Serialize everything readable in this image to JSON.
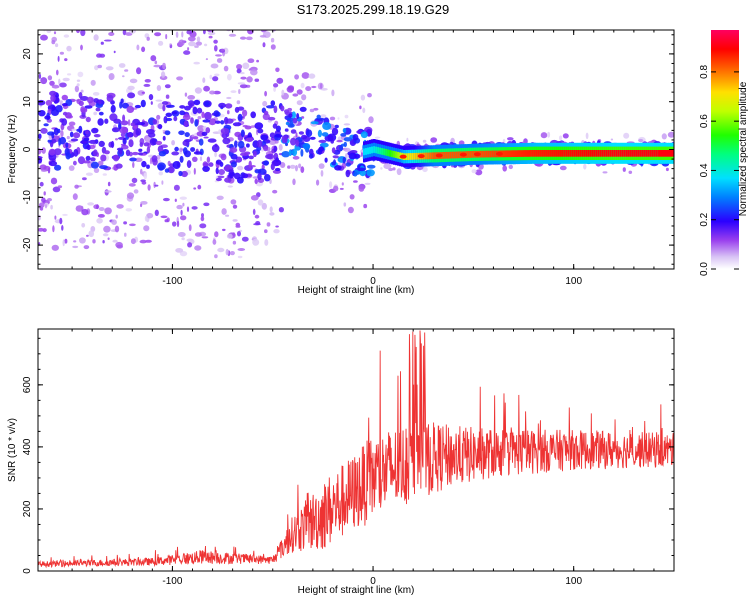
{
  "title": "S173.2025.299.18.19.G29",
  "chart_data": [
    {
      "type": "heatmap",
      "xlabel": "Height of straight line (km)",
      "ylabel": "Frequency (Hz)",
      "xlim": [
        -167,
        150
      ],
      "ylim": [
        -25,
        25
      ],
      "xticks": [
        -100,
        0,
        100
      ],
      "yticks": [
        -20,
        -10,
        0,
        10,
        20
      ],
      "zlabel": "Normalized spectral amplitude",
      "zlim": [
        0,
        0.97
      ],
      "zticks": [
        0.0,
        0.2,
        0.4,
        0.6,
        0.8
      ],
      "ridge": [
        {
          "x": -110,
          "y": 4,
          "amp": 0.3
        },
        {
          "x": -90,
          "y": 2,
          "amp": 0.25
        },
        {
          "x": -60,
          "y": 1,
          "amp": 0.3
        },
        {
          "x": -40,
          "y": 4,
          "amp": 0.3
        },
        {
          "x": -25,
          "y": 3,
          "amp": 0.35
        },
        {
          "x": -10,
          "y": -1,
          "amp": 0.35
        },
        {
          "x": 0,
          "y": 0,
          "amp": 0.4
        },
        {
          "x": 15,
          "y": -1.5,
          "amp": 0.7
        },
        {
          "x": 30,
          "y": -1.3,
          "amp": 0.85
        },
        {
          "x": 50,
          "y": -1,
          "amp": 0.85
        },
        {
          "x": 80,
          "y": -0.8,
          "amp": 0.9
        },
        {
          "x": 120,
          "y": -0.8,
          "amp": 0.93
        },
        {
          "x": 150,
          "y": -0.8,
          "amp": 0.93
        }
      ]
    },
    {
      "type": "line",
      "xlabel": "Height of straight line (km)",
      "ylabel": "SNR (10 * v/v)",
      "xlim": [
        -167,
        150
      ],
      "ylim": [
        0,
        780
      ],
      "xticks": [
        -100,
        0,
        100
      ],
      "yticks": [
        0,
        200,
        400,
        600
      ],
      "series": [
        {
          "name": "SNR",
          "color": "#ee3333",
          "envelope": [
            {
              "x": -167,
              "base": 22,
              "spread": 18
            },
            {
              "x": -110,
              "base": 30,
              "spread": 25
            },
            {
              "x": -85,
              "base": 45,
              "spread": 45
            },
            {
              "x": -50,
              "base": 35,
              "spread": 25
            },
            {
              "x": -40,
              "base": 120,
              "spread": 120
            },
            {
              "x": -25,
              "base": 180,
              "spread": 230
            },
            {
              "x": -10,
              "base": 250,
              "spread": 250
            },
            {
              "x": 0,
              "base": 300,
              "spread": 280
            },
            {
              "x": 10,
              "base": 330,
              "spread": 270
            },
            {
              "x": 25,
              "base": 360,
              "spread": 250
            },
            {
              "x": 40,
              "base": 370,
              "spread": 200
            },
            {
              "x": 60,
              "base": 380,
              "spread": 160
            },
            {
              "x": 100,
              "base": 390,
              "spread": 130
            },
            {
              "x": 150,
              "base": 390,
              "spread": 110
            }
          ]
        }
      ]
    }
  ]
}
